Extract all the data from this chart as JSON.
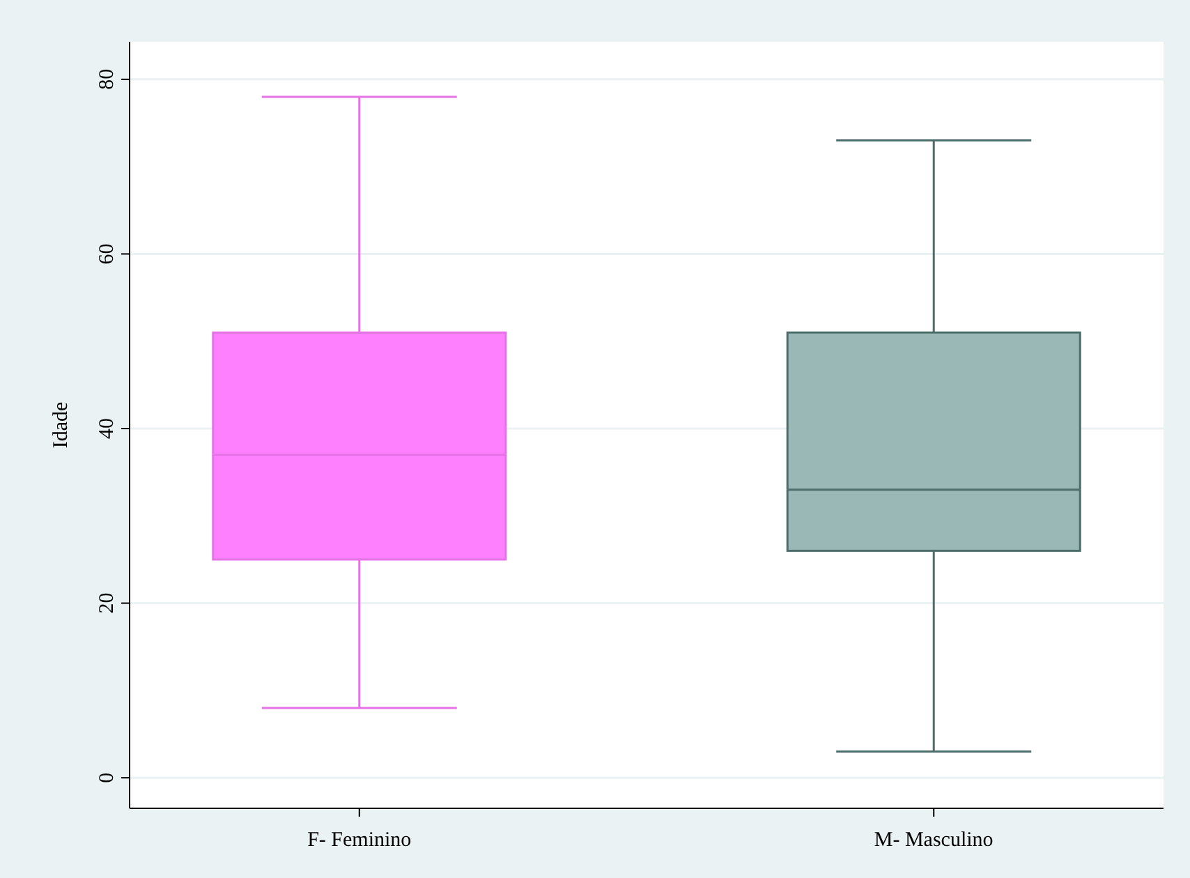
{
  "chart_data": {
    "type": "box",
    "ylabel": "Idade",
    "categories": [
      "F- Feminino",
      "M- Masculino"
    ],
    "boxes": [
      {
        "low": 8,
        "q1": 25,
        "median": 37,
        "q3": 51,
        "high": 78
      },
      {
        "low": 3,
        "q1": 26,
        "median": 33,
        "q3": 51,
        "high": 73
      }
    ],
    "colors": [
      "#ff80ff",
      "#9ab8b6"
    ],
    "ylim": [
      -3.5,
      84.3
    ],
    "yticks": [
      0,
      20,
      40,
      60,
      80
    ],
    "grid": "y"
  }
}
